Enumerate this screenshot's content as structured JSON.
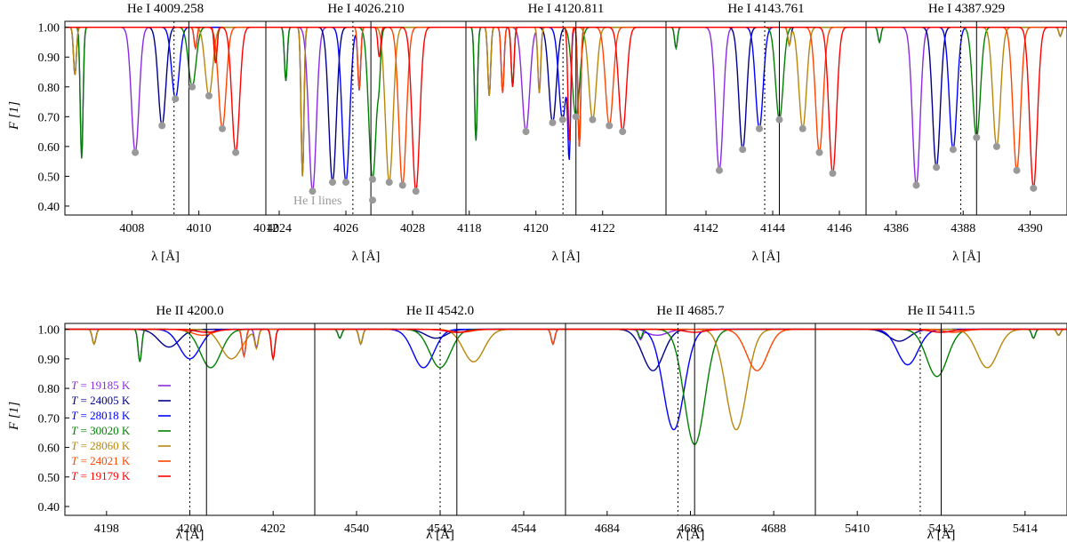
{
  "figure": {
    "ylabel": "F [1]",
    "xlabel": "λ [Å]",
    "y_ticks": [
      "1.00",
      "0.90",
      "0.80",
      "0.70",
      "0.60",
      "0.50",
      "0.40"
    ],
    "annotation": "He I lines"
  },
  "legend": [
    {
      "label": "T = 19185 K",
      "t_prefix": "T",
      "t_value": "= 19185 K",
      "color": "#8a2be2"
    },
    {
      "label": "T = 24005 K",
      "t_prefix": "T",
      "t_value": "= 24005 K",
      "color": "#00008b"
    },
    {
      "label": "T = 28018 K",
      "t_prefix": "T",
      "t_value": "= 28018 K",
      "color": "#0000ff"
    },
    {
      "label": "T = 30020 K",
      "t_prefix": "T",
      "t_value": "= 30020 K",
      "color": "#008000"
    },
    {
      "label": "T = 28060 K",
      "t_prefix": "T",
      "t_value": "= 28060 K",
      "color": "#b8860b"
    },
    {
      "label": "T = 24021 K",
      "t_prefix": "T",
      "t_value": "= 24021 K",
      "color": "#ff4500"
    },
    {
      "label": "T = 19179 K",
      "t_prefix": "T",
      "t_value": "= 19179 K",
      "color": "#ff0000"
    }
  ],
  "chart_data": [
    {
      "type": "line",
      "title": "He I 4009.258",
      "xlim": [
        4006,
        4012
      ],
      "ylim": [
        0.37,
        1.02
      ],
      "x_ticks": [
        4008,
        4010,
        4012
      ],
      "x_tick_labels": [
        "4008",
        "4010",
        "4012"
      ],
      "rest_line": 4009.258,
      "observed_line": 4009.7,
      "series_minima": [
        [
          4008.1,
          0.58
        ],
        [
          4008.9,
          0.67
        ],
        [
          4009.3,
          0.76
        ],
        [
          4009.8,
          0.8
        ],
        [
          4010.3,
          0.77
        ],
        [
          4010.7,
          0.66
        ],
        [
          4011.1,
          0.58
        ]
      ],
      "extra_lines": [
        [
          4006.5,
          0.56
        ],
        [
          4006.3,
          0.84
        ],
        [
          4009.9,
          0.93
        ],
        [
          4010.5,
          0.88
        ]
      ]
    },
    {
      "type": "line",
      "title": "He I 4026.210",
      "xlim": [
        4023.6,
        4029.6
      ],
      "ylim": [
        0.37,
        1.02
      ],
      "x_ticks": [
        4024,
        4026,
        4028
      ],
      "x_tick_labels": [
        "4024",
        "4026",
        "4028"
      ],
      "rest_line": 4026.21,
      "observed_line": 4026.75,
      "series_minima": [
        [
          4025.0,
          0.45
        ],
        [
          4025.6,
          0.48
        ],
        [
          4026.0,
          0.48
        ],
        [
          4026.8,
          0.49
        ],
        [
          4027.3,
          0.48
        ],
        [
          4027.7,
          0.47
        ],
        [
          4028.1,
          0.45
        ]
      ],
      "marker_extra": [
        4026.8,
        0.42
      ],
      "extra_lines": [
        [
          4024.2,
          0.82
        ],
        [
          4024.7,
          0.5
        ],
        [
          4026.4,
          0.79
        ],
        [
          4027.0,
          0.9
        ]
      ]
    },
    {
      "type": "line",
      "title": "He I 4120.811",
      "xlim": [
        4117.9,
        4123.9
      ],
      "ylim": [
        0.37,
        1.02
      ],
      "x_ticks": [
        4118,
        4120,
        4122
      ],
      "x_tick_labels": [
        "4118",
        "4120",
        "4122"
      ],
      "rest_line": 4120.811,
      "observed_line": 4121.2,
      "series_minima": [
        [
          4119.7,
          0.65
        ],
        [
          4120.5,
          0.68
        ],
        [
          4120.8,
          0.69
        ],
        [
          4121.2,
          0.7
        ],
        [
          4121.7,
          0.69
        ],
        [
          4122.2,
          0.67
        ],
        [
          4122.6,
          0.65
        ]
      ],
      "extra_lines": [
        [
          4118.2,
          0.62
        ],
        [
          4118.6,
          0.77
        ],
        [
          4119.0,
          0.78
        ],
        [
          4119.3,
          0.8
        ],
        [
          4120.1,
          0.78
        ],
        [
          4121.3,
          0.6
        ],
        [
          4121.0,
          0.62
        ]
      ]
    },
    {
      "type": "line",
      "title": "He I 4143.761",
      "xlim": [
        4140.8,
        4146.8
      ],
      "ylim": [
        0.37,
        1.02
      ],
      "x_ticks": [
        4142,
        4144,
        4146
      ],
      "x_tick_labels": [
        "4142",
        "4144",
        "4146"
      ],
      "rest_line": 4143.761,
      "observed_line": 4144.2,
      "series_minima": [
        [
          4142.4,
          0.52
        ],
        [
          4143.1,
          0.59
        ],
        [
          4143.6,
          0.66
        ],
        [
          4144.2,
          0.69
        ],
        [
          4144.9,
          0.66
        ],
        [
          4145.4,
          0.58
        ],
        [
          4145.8,
          0.51
        ]
      ],
      "extra_lines": [
        [
          4141.1,
          0.93
        ],
        [
          4144.5,
          0.94
        ]
      ]
    },
    {
      "type": "line",
      "title": "He I 4387.929",
      "xlim": [
        4385.1,
        4391.1
      ],
      "ylim": [
        0.37,
        1.02
      ],
      "x_ticks": [
        4386,
        4388,
        4390
      ],
      "x_tick_labels": [
        "4386",
        "4388",
        "4390"
      ],
      "rest_line": 4387.929,
      "observed_line": 4388.4,
      "series_minima": [
        [
          4386.6,
          0.47
        ],
        [
          4387.2,
          0.53
        ],
        [
          4387.7,
          0.59
        ],
        [
          4388.4,
          0.63
        ],
        [
          4389.0,
          0.6
        ],
        [
          4389.6,
          0.52
        ],
        [
          4390.1,
          0.46
        ]
      ],
      "extra_lines": [
        [
          4385.5,
          0.95
        ],
        [
          4390.9,
          0.97
        ]
      ]
    },
    {
      "type": "line",
      "title": "He II 4200.0",
      "xlim": [
        4197,
        4203
      ],
      "ylim": [
        0.37,
        1.02
      ],
      "x_ticks": [
        4198,
        4200,
        4202
      ],
      "x_tick_labels": [
        "4198",
        "4200",
        "4202"
      ],
      "rest_line": 4200.0,
      "observed_line": 4200.4,
      "series_minima": [
        [
          4200.4,
          0.99
        ],
        [
          4199.5,
          0.94
        ],
        [
          4200.0,
          0.9
        ],
        [
          4200.5,
          0.87
        ],
        [
          4201.0,
          0.9
        ],
        [
          4200.3,
          0.98
        ],
        [
          4200.4,
          0.99
        ]
      ],
      "extra_lines": [
        [
          4198.8,
          0.89
        ],
        [
          4197.7,
          0.95
        ],
        [
          4201.3,
          0.91
        ],
        [
          4202.0,
          0.9
        ],
        [
          4201.6,
          0.94
        ]
      ]
    },
    {
      "type": "line",
      "title": "He II 4542.0",
      "xlim": [
        4539,
        4545
      ],
      "ylim": [
        0.37,
        1.02
      ],
      "x_ticks": [
        4540,
        4542,
        4544
      ],
      "x_tick_labels": [
        "4540",
        "4542",
        "4544"
      ],
      "rest_line": 4542.0,
      "observed_line": 4542.4,
      "series_minima": [
        [
          4542.4,
          0.99
        ],
        [
          4541.9,
          0.97
        ],
        [
          4541.6,
          0.87
        ],
        [
          4542.0,
          0.87
        ],
        [
          4542.8,
          0.89
        ],
        [
          4542.5,
          0.99
        ],
        [
          4542.4,
          0.99
        ]
      ],
      "extra_lines": [
        [
          4539.6,
          0.97
        ],
        [
          4540.1,
          0.95
        ],
        [
          4544.7,
          0.95
        ]
      ]
    },
    {
      "type": "line",
      "title": "He II 4685.7",
      "xlim": [
        4683,
        4689
      ],
      "ylim": [
        0.37,
        1.02
      ],
      "x_ticks": [
        4684,
        4686,
        4688
      ],
      "x_tick_labels": [
        "4684",
        "4686",
        "4688"
      ],
      "rest_line": 4685.7,
      "observed_line": 4686.1,
      "series_minima": [
        [
          4685.2,
          0.98
        ],
        [
          4685.1,
          0.86
        ],
        [
          4685.6,
          0.66
        ],
        [
          4686.1,
          0.61
        ],
        [
          4687.1,
          0.66
        ],
        [
          4687.6,
          0.86
        ],
        [
          4686.1,
          0.99
        ]
      ],
      "extra_lines": [
        [
          4684.8,
          0.97
        ]
      ]
    },
    {
      "type": "line",
      "title": "He II 5411.5",
      "xlim": [
        5409,
        5415
      ],
      "ylim": [
        0.37,
        1.02
      ],
      "x_ticks": [
        5410,
        5412,
        5414
      ],
      "x_tick_labels": [
        "5410",
        "5412",
        "5414"
      ],
      "rest_line": 5411.5,
      "observed_line": 5412.0,
      "series_minima": [
        [
          5412.0,
          0.99
        ],
        [
          5411.0,
          0.96
        ],
        [
          5411.2,
          0.88
        ],
        [
          5411.9,
          0.84
        ],
        [
          5413.1,
          0.87
        ],
        [
          5412.3,
          0.99
        ],
        [
          5412.0,
          0.99
        ]
      ],
      "extra_lines": [
        [
          5414.2,
          0.97
        ],
        [
          5414.8,
          0.98
        ]
      ]
    }
  ]
}
